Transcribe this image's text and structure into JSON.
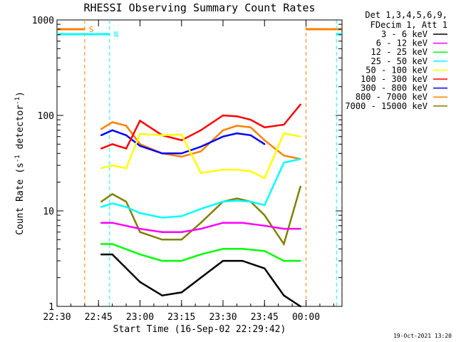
{
  "chart_data": {
    "type": "line",
    "title": "RHESSI Observing Summary Count Rates",
    "xlabel": "Start Time (16-Sep-02 22:29:42)",
    "ylabel": "Count Rate (s⁻¹ detector⁻¹)",
    "ylabel_main": "Count Rate (s",
    "ylabel_sup1": "-1",
    "ylabel_mid": " detector",
    "ylabel_sup2": "-1",
    "ylabel_end": ")",
    "y_scale": "log",
    "ylim": [
      1,
      1000
    ],
    "xlim": [
      "22:30",
      "00:13"
    ],
    "x_ticks": [
      "22:30",
      "22:45",
      "23:00",
      "23:15",
      "23:30",
      "23:45",
      "00:00"
    ],
    "y_ticks": [
      1,
      10,
      100,
      1000
    ],
    "y_tick_labels": [
      "1",
      "10",
      "100",
      "1000"
    ],
    "grid": false,
    "legend_position": "right",
    "legend_header": [
      "Det 1,3,4,5,6,9,",
      "FDecim 1, Att 1"
    ],
    "timestamp": "19-Oct-2021 13:20",
    "markers": [
      {
        "label": "S",
        "color": "#ff8000",
        "start": "22:40",
        "end": "00:00"
      },
      {
        "label": "N",
        "color": "#00ffff",
        "start": "22:49",
        "end": "00:11"
      }
    ],
    "series": [
      {
        "name": "3 - 6 keV",
        "color": "#000000",
        "x": [
          "22:46",
          "22:50",
          "23:00",
          "23:08",
          "23:15",
          "23:22",
          "23:30",
          "23:37",
          "23:45",
          "23:52",
          "23:58"
        ],
        "values": [
          3.5,
          3.5,
          1.8,
          1.3,
          1.4,
          2.0,
          3.0,
          3.0,
          2.5,
          1.3,
          1.0
        ]
      },
      {
        "name": "6 - 12 keV",
        "color": "#ff00ff",
        "x": [
          "22:46",
          "22:50",
          "23:00",
          "23:08",
          "23:15",
          "23:22",
          "23:30",
          "23:37",
          "23:45",
          "23:52",
          "23:58"
        ],
        "values": [
          7.5,
          7.5,
          6.5,
          6.0,
          6.0,
          6.5,
          7.5,
          7.5,
          7.0,
          6.5,
          6.5
        ]
      },
      {
        "name": "12 - 25 keV",
        "color": "#00ff00",
        "x": [
          "22:46",
          "22:50",
          "23:00",
          "23:08",
          "23:15",
          "23:22",
          "23:30",
          "23:37",
          "23:45",
          "23:52",
          "23:58"
        ],
        "values": [
          4.5,
          4.5,
          3.5,
          3.0,
          3.0,
          3.5,
          4.0,
          4.0,
          3.8,
          3.0,
          3.0
        ]
      },
      {
        "name": "25 - 50 keV",
        "color": "#00ffff",
        "x": [
          "22:46",
          "22:50",
          "22:55",
          "23:00",
          "23:08",
          "23:15",
          "23:22",
          "23:30",
          "23:35",
          "23:40",
          "23:45",
          "23:52",
          "23:58"
        ],
        "values": [
          11,
          12,
          11,
          9.5,
          8.5,
          8.8,
          10.5,
          12.5,
          12.8,
          12.5,
          11.5,
          32,
          35
        ]
      },
      {
        "name": "50 - 100 keV",
        "color": "#ffff00",
        "x": [
          "22:46",
          "22:50",
          "22:55",
          "23:00",
          "23:08",
          "23:15",
          "23:22",
          "23:30",
          "23:35",
          "23:40",
          "23:45",
          "23:52",
          "23:58"
        ],
        "values": [
          28,
          30,
          28,
          64,
          62,
          63,
          25,
          27,
          27,
          26,
          22,
          65,
          60
        ]
      },
      {
        "name": "100 - 300 keV",
        "color": "#ff0000",
        "x": [
          "22:46",
          "22:50",
          "22:55",
          "23:00",
          "23:08",
          "23:15",
          "23:22",
          "23:30",
          "23:35",
          "23:40",
          "23:45",
          "23:52",
          "23:58"
        ],
        "values": [
          45,
          50,
          45,
          88,
          62,
          55,
          70,
          100,
          98,
          90,
          75,
          80,
          130
        ]
      },
      {
        "name": "300 - 800 keV",
        "color": "#0000ff",
        "x": [
          "22:46",
          "22:50",
          "22:55",
          "23:00",
          "23:08",
          "23:15",
          "23:22",
          "23:30",
          "23:35",
          "23:40",
          "23:45"
        ],
        "values": [
          62,
          70,
          62,
          48,
          40,
          40,
          47,
          60,
          65,
          62,
          50
        ]
      },
      {
        "name": "800 - 7000 keV",
        "color": "#ff8000",
        "x": [
          "22:46",
          "22:50",
          "22:55",
          "23:00",
          "23:08",
          "23:15",
          "23:22",
          "23:30",
          "23:35",
          "23:40",
          "23:45",
          "23:52",
          "23:58"
        ],
        "values": [
          72,
          85,
          78,
          50,
          40,
          37,
          42,
          70,
          78,
          75,
          55,
          38,
          35
        ]
      },
      {
        "name": "7000 - 15000 keV",
        "color": "#808000",
        "x": [
          "22:46",
          "22:50",
          "22:55",
          "23:00",
          "23:08",
          "23:15",
          "23:22",
          "23:30",
          "23:35",
          "23:40",
          "23:45",
          "23:52",
          "23:58"
        ],
        "values": [
          12.5,
          15,
          12.5,
          6,
          5,
          5,
          7.5,
          12.5,
          13.5,
          12.5,
          9,
          4.5,
          18
        ]
      }
    ]
  }
}
